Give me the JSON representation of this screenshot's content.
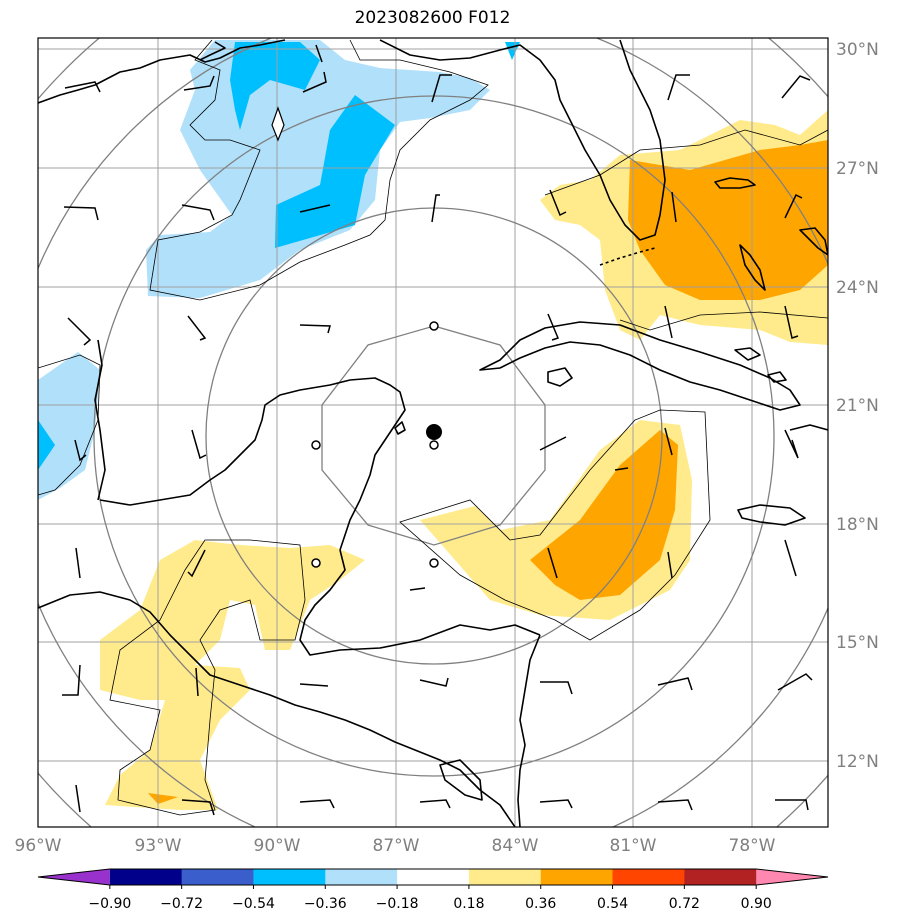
{
  "title": "2023082600 F012",
  "latitude_labels": [
    "30°N",
    "27°N",
    "24°N",
    "21°N",
    "18°N",
    "15°N",
    "12°N"
  ],
  "longitude_labels": [
    "96°W",
    "93°W",
    "90°W",
    "87°W",
    "84°W",
    "81°W",
    "78°W"
  ],
  "colorbar": {
    "tick_labels": [
      "−0.90",
      "−0.72",
      "−0.54",
      "−0.36",
      "−0.18",
      "0.18",
      "0.36",
      "0.54",
      "0.72",
      "0.90"
    ],
    "colors": [
      "#9932cc",
      "#00008b",
      "#3a5fcd",
      "#00bfff",
      "#b0e0fa",
      "#ffffff",
      "#ffeb8c",
      "#ffa500",
      "#ff4500",
      "#b22222",
      "#ff88b0"
    ]
  },
  "field_colors": {
    "light_blue": "#b0e0fa",
    "deep_sky_blue": "#00bfff",
    "pale_yellow": "#ffeb8c",
    "orange": "#ffa500"
  },
  "storm_center_marker": "black-dot"
}
